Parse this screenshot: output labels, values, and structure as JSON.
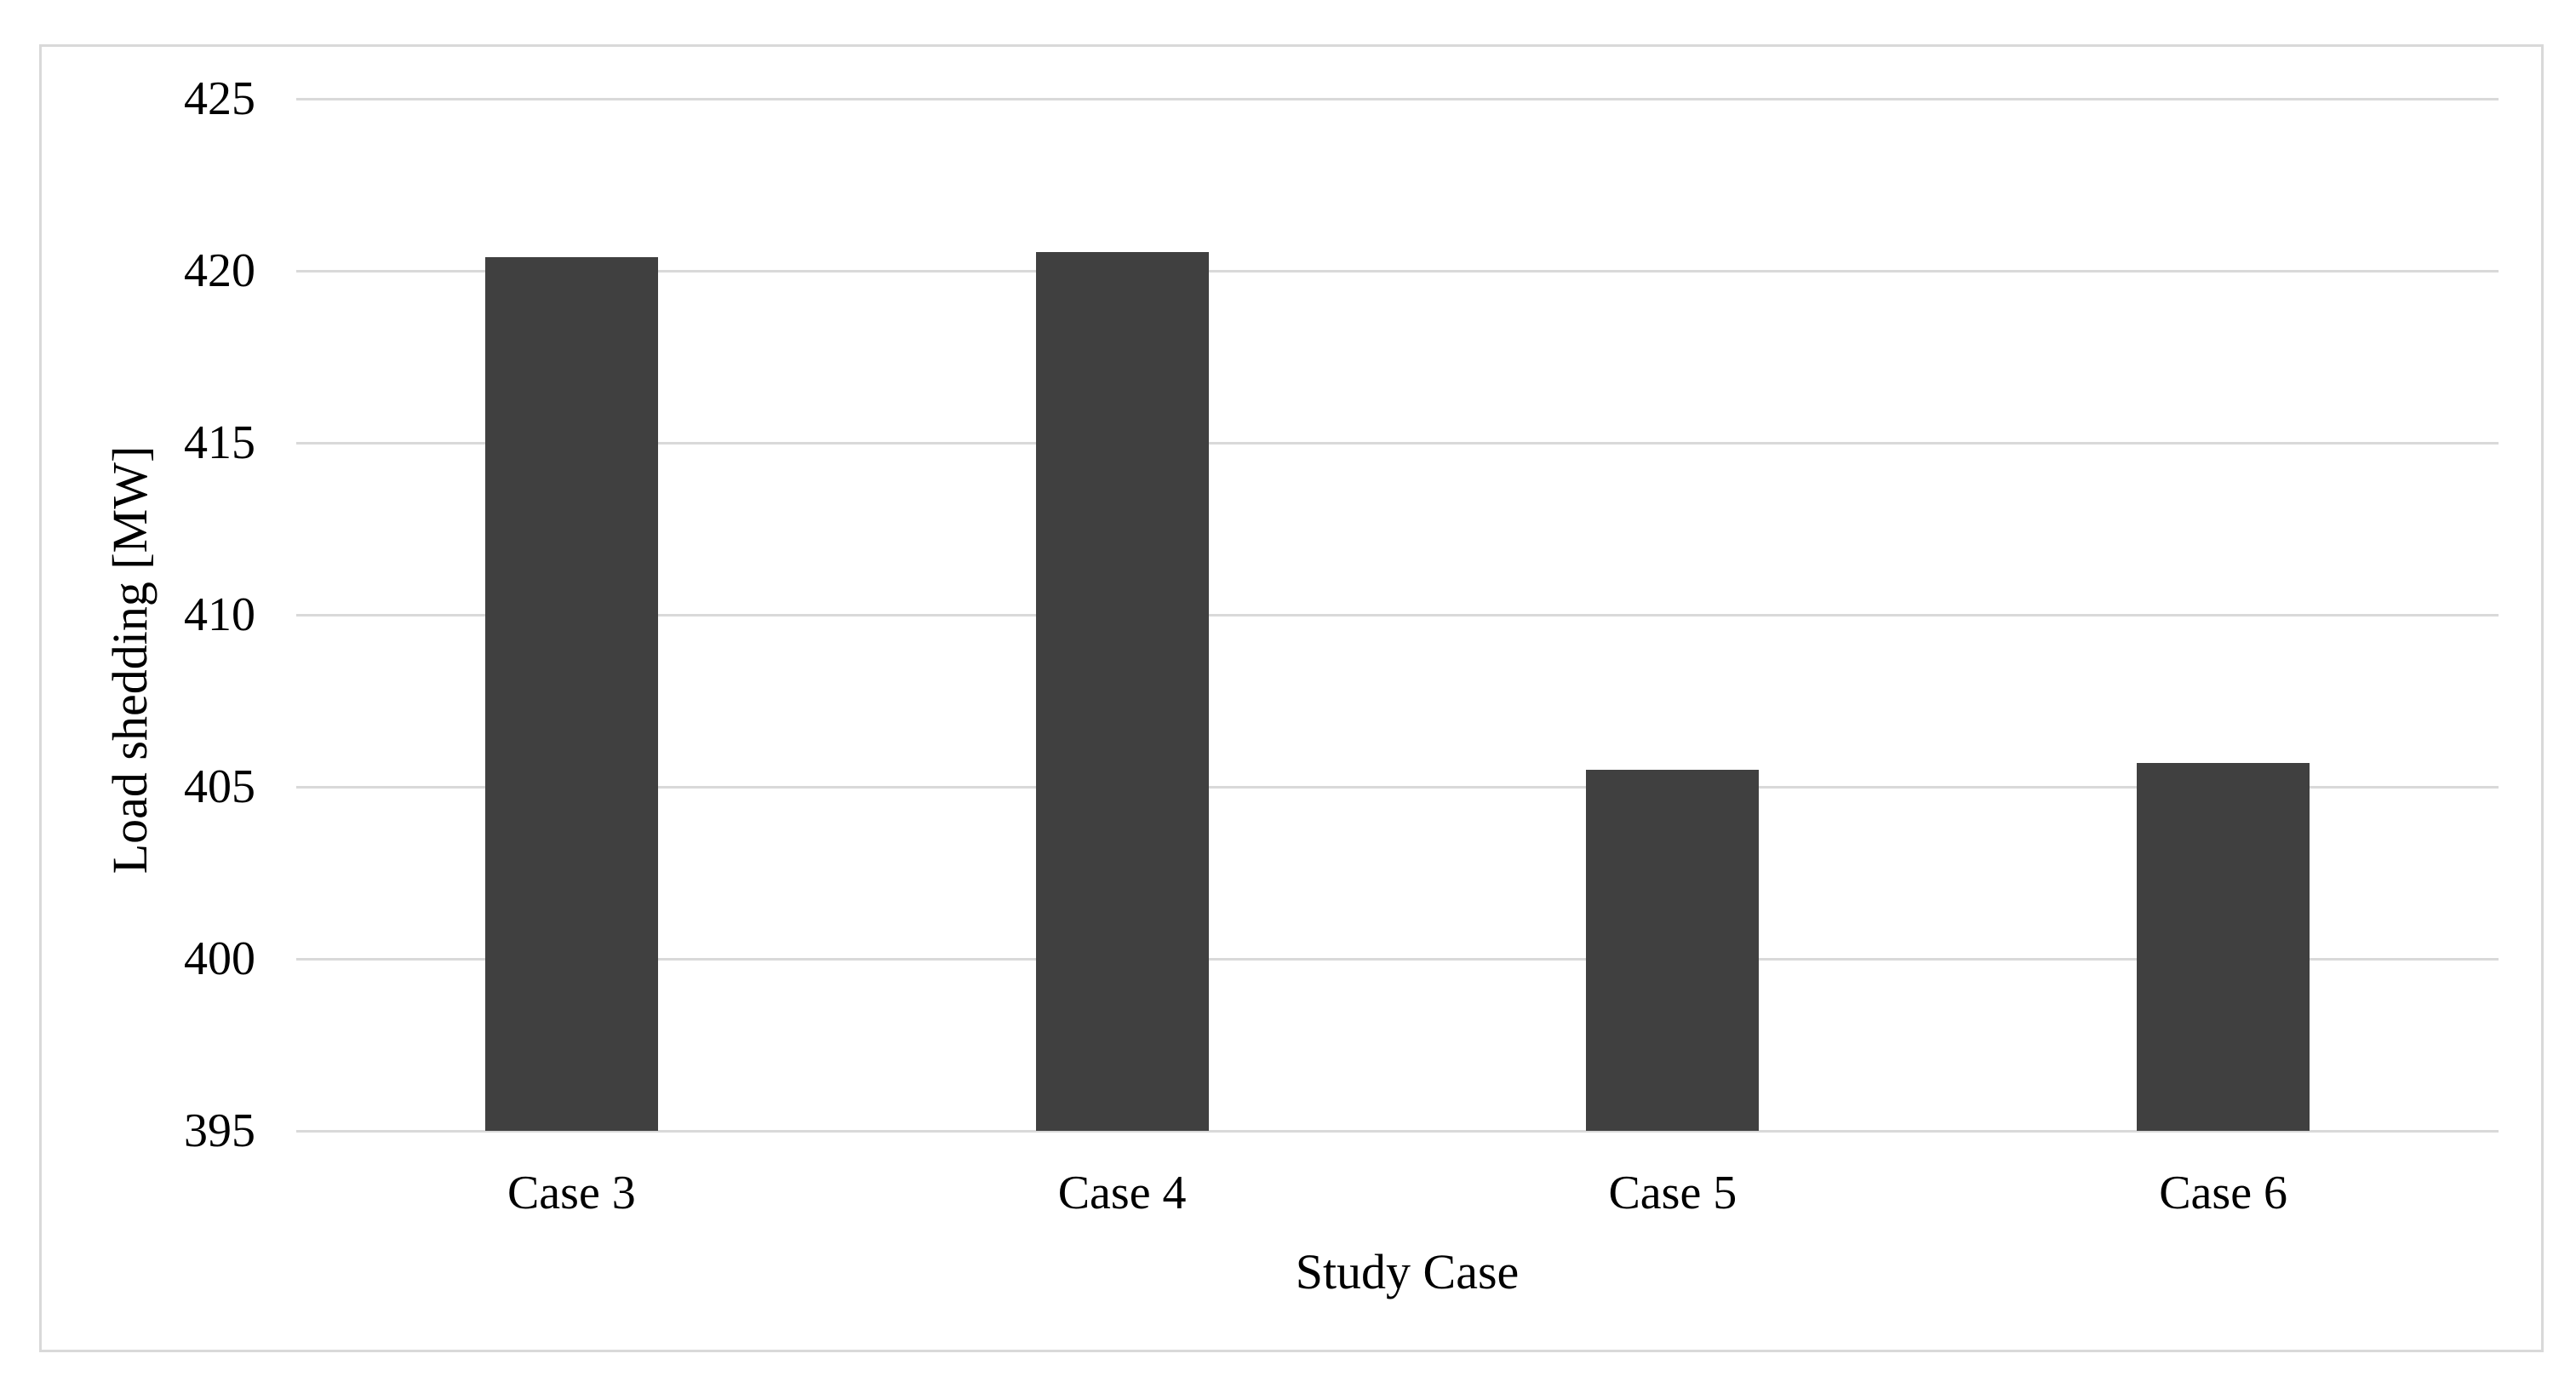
{
  "figure": {
    "background_color": "#ffffff",
    "border_color": "#d9d9d9"
  },
  "chart_data": {
    "type": "bar",
    "title": "",
    "categories": [
      "Case 3",
      "Case 4",
      "Case 5",
      "Case 6"
    ],
    "values": [
      420.4,
      420.55,
      405.5,
      405.7
    ],
    "xlabel": "Study Case",
    "ylabel": "Load shedding [MW]",
    "ylim": [
      395,
      425
    ],
    "yticks": [
      395,
      400,
      405,
      410,
      415,
      420,
      425
    ],
    "ytick_labels": [
      "395",
      "400",
      "405",
      "410",
      "415",
      "420",
      "425"
    ],
    "grid": "horizontal-only",
    "legend": "none",
    "bar_color": "#404040",
    "gridline_color": "#d9d9d9",
    "axis_text_color": "#000000"
  }
}
